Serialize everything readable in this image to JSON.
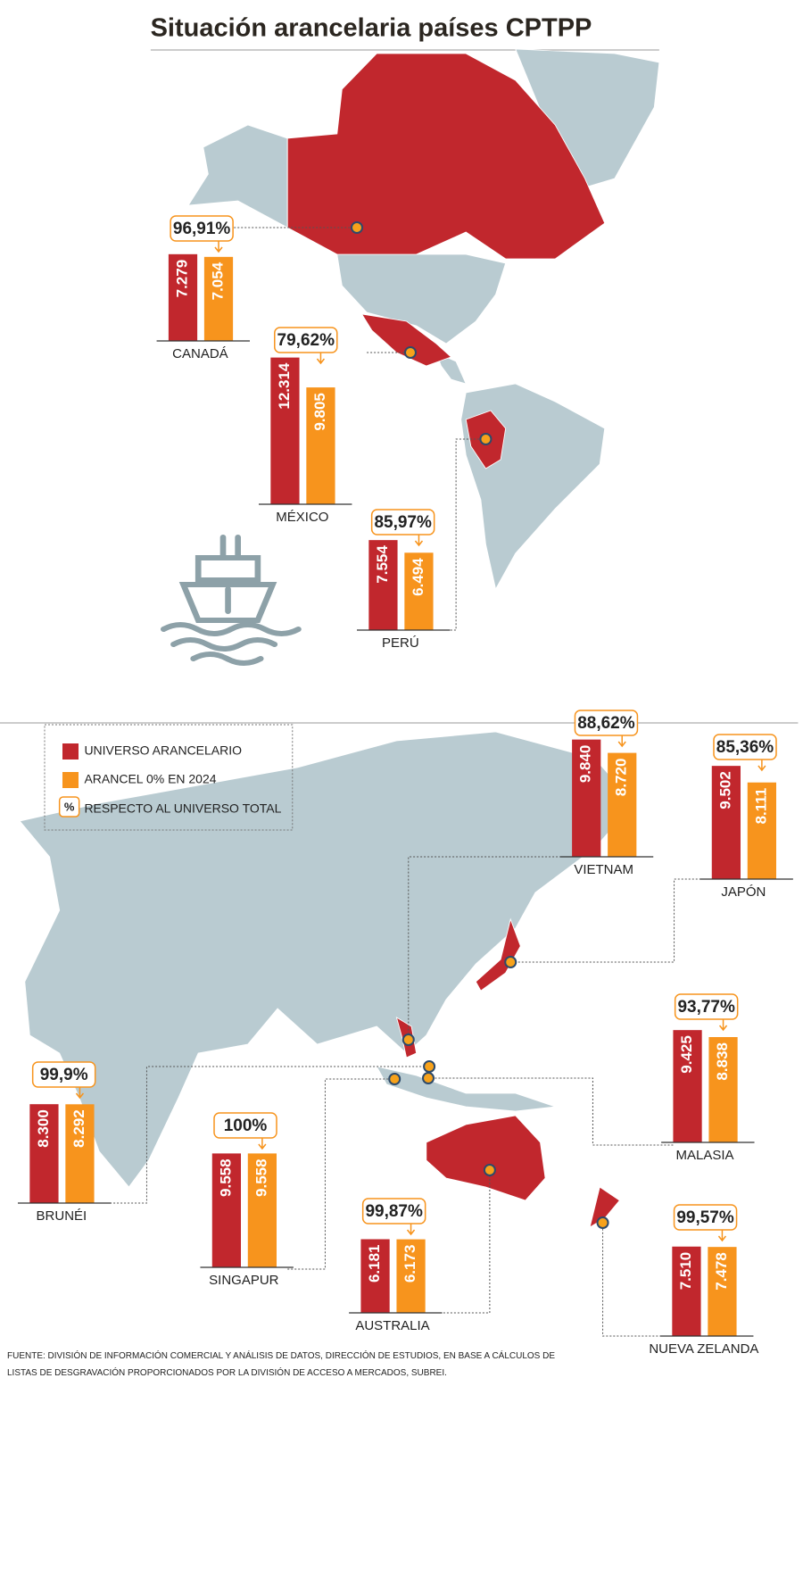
{
  "title": "Situación arancelaria países CPTPP",
  "legend": {
    "items": [
      {
        "label": "UNIVERSO ARANCELARIO",
        "color": "#c1272d"
      },
      {
        "label": "ARANCEL 0% EN 2024",
        "color": "#f7941d"
      },
      {
        "label": "RESPECTO AL UNIVERSO TOTAL",
        "symbol": "%"
      }
    ]
  },
  "chart_data": [
    {
      "type": "bar",
      "title": "CANADÁ",
      "annotation": "96,91%",
      "values": [
        7279,
        7054
      ],
      "value_labels": [
        "7.279",
        "7.054"
      ]
    },
    {
      "type": "bar",
      "title": "MÉXICO",
      "annotation": "79,62%",
      "values": [
        12314,
        9805
      ],
      "value_labels": [
        "12.314",
        "9.805"
      ]
    },
    {
      "type": "bar",
      "title": "PERÚ",
      "annotation": "85,97%",
      "values": [
        7554,
        6494
      ],
      "value_labels": [
        "7.554",
        "6.494"
      ]
    },
    {
      "type": "bar",
      "title": "VIETNAM",
      "annotation": "88,62%",
      "values": [
        9840,
        8720
      ],
      "value_labels": [
        "9.840",
        "8.720"
      ]
    },
    {
      "type": "bar",
      "title": "JAPÓN",
      "annotation": "85,36%",
      "values": [
        9502,
        8111
      ],
      "value_labels": [
        "9.502",
        "8.111"
      ]
    },
    {
      "type": "bar",
      "title": "MALASIA",
      "annotation": "93,77%",
      "values": [
        9425,
        8838
      ],
      "value_labels": [
        "9.425",
        "8.838"
      ]
    },
    {
      "type": "bar",
      "title": "BRUNÉI",
      "annotation": "99,9%",
      "values": [
        8300,
        8292
      ],
      "value_labels": [
        "8.300",
        "8.292"
      ]
    },
    {
      "type": "bar",
      "title": "SINGAPUR",
      "annotation": "100%",
      "values": [
        9558,
        9558
      ],
      "value_labels": [
        "9.558",
        "9.558"
      ]
    },
    {
      "type": "bar",
      "title": "AUSTRALIA",
      "annotation": "99,87%",
      "values": [
        6181,
        6173
      ],
      "value_labels": [
        "6.181",
        "6.173"
      ]
    },
    {
      "type": "bar",
      "title": "NUEVA ZELANDA",
      "annotation": "99,57%",
      "values": [
        7510,
        7478
      ],
      "value_labels": [
        "7.510",
        "7.478"
      ]
    }
  ],
  "source": [
    "FUENTE: DIVISIÓN DE INFORMACIÓN COMERCIAL Y ANÁLISIS DE DATOS, DIRECCIÓN DE ESTUDIOS, EN BASE A CÁLCULOS DE",
    "LISTAS DE DESGRAVACIÓN PROPORCIONADOS POR LA DIVISIÓN DE ACCESO A MERCADOS, SUBREI."
  ]
}
